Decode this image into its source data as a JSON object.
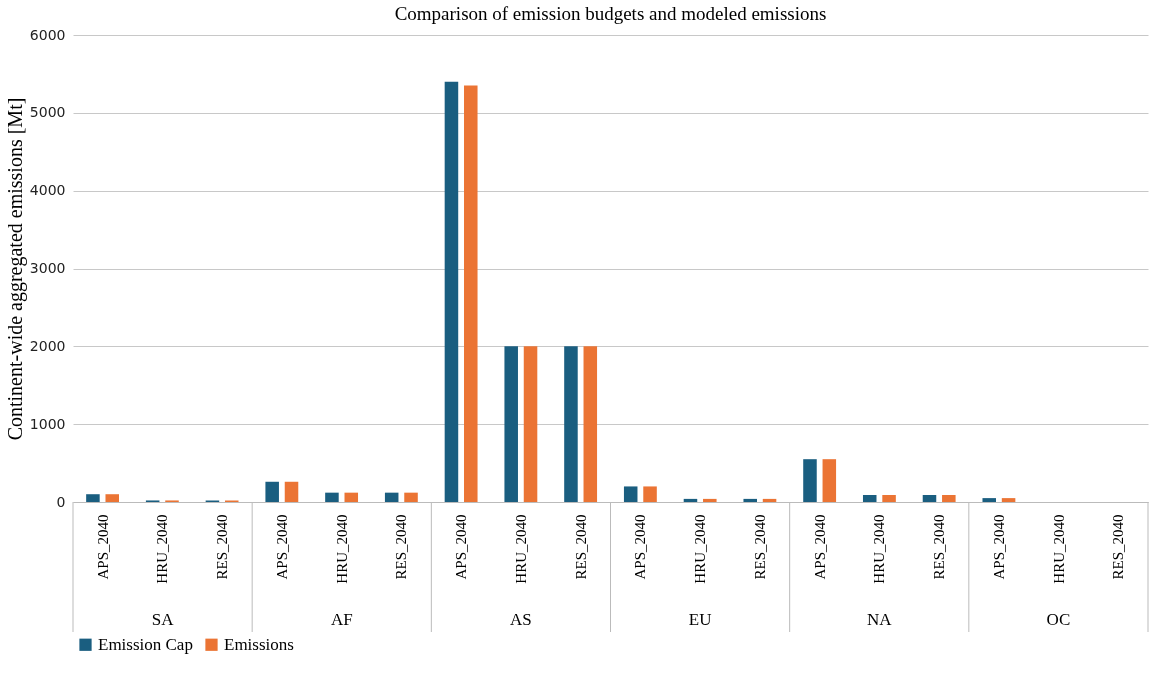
{
  "chart_data": {
    "type": "bar",
    "title": "Comparison of emission budgets and modeled emissions",
    "ylabel": "Continent-wide aggregated emissions [Mt]",
    "categories": [
      "APS_2040",
      "HRU_2040",
      "RES_2040",
      "APS_2040",
      "HRU_2040",
      "RES_2040",
      "APS_2040",
      "HRU_2040",
      "RES_2040",
      "APS_2040",
      "HRU_2040",
      "RES_2040",
      "APS_2040",
      "HRU_2040",
      "RES_2040",
      "APS_2040",
      "HRU_2040",
      "RES_2040"
    ],
    "annotations": [
      "SA",
      "AF",
      "AS",
      "EU",
      "NA",
      "OC"
    ],
    "series": [
      {
        "name": "Emission Cap",
        "color": "#1a5e80",
        "values": [
          100,
          20,
          20,
          260,
          120,
          120,
          5400,
          2000,
          2000,
          200,
          40,
          40,
          550,
          90,
          90,
          50,
          0,
          0
        ]
      },
      {
        "name": "Emissions",
        "color": "#eb7434",
        "values": [
          100,
          20,
          20,
          260,
          120,
          120,
          5350,
          2000,
          2000,
          200,
          40,
          40,
          550,
          90,
          90,
          50,
          0,
          0
        ]
      }
    ],
    "ylim": [
      0,
      6000
    ],
    "yticks": [
      0,
      1000,
      2000,
      3000,
      4000,
      5000,
      6000
    ],
    "grid": "y",
    "legend": "bottom"
  }
}
